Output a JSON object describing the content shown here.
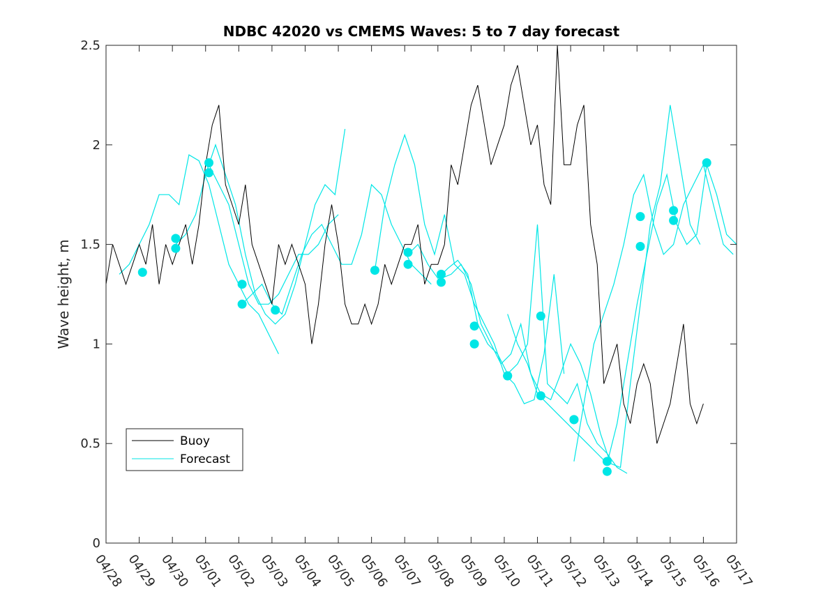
{
  "chart_data": {
    "type": "line",
    "title": "NDBC 42020 vs CMEMS Waves: 5 to 7 day forecast",
    "xlabel": "",
    "ylabel": "Wave height, m",
    "xlim_days": [
      0,
      19
    ],
    "ylim": [
      0,
      2.5
    ],
    "x_ticks": [
      "04/28",
      "04/29",
      "04/30",
      "05/01",
      "05/02",
      "05/03",
      "05/04",
      "05/05",
      "05/06",
      "05/07",
      "05/08",
      "05/09",
      "05/10",
      "05/11",
      "05/12",
      "05/13",
      "05/14",
      "05/15",
      "05/16",
      "05/17"
    ],
    "y_ticks": [
      "0",
      "0.5",
      "1",
      "1.5",
      "2",
      "2.5"
    ],
    "y_tick_values": [
      0,
      0.5,
      1,
      1.5,
      2,
      2.5
    ],
    "grid": false,
    "legend": {
      "position": "bottom-left",
      "entries": [
        {
          "label": "Buoy",
          "color": "#000000"
        },
        {
          "label": "Forecast",
          "color": "#00e6e6"
        }
      ]
    },
    "colors": {
      "buoy": "#000000",
      "forecast": "#00e6e6"
    },
    "series": [
      {
        "name": "Buoy",
        "x_day": [
          0,
          0.2,
          0.4,
          0.6,
          0.8,
          1.0,
          1.2,
          1.4,
          1.6,
          1.8,
          2.0,
          2.2,
          2.4,
          2.6,
          2.8,
          3.0,
          3.2,
          3.4,
          3.6,
          3.8,
          4.0,
          4.2,
          4.4,
          4.6,
          4.8,
          5.0,
          5.2,
          5.4,
          5.6,
          5.8,
          6.0,
          6.2,
          6.4,
          6.6,
          6.8,
          7.0,
          7.2,
          7.4,
          7.6,
          7.8,
          8.0,
          8.2,
          8.4,
          8.6,
          8.8,
          9.0,
          9.2,
          9.4,
          9.6,
          9.8,
          10.0,
          10.2,
          10.4,
          10.6,
          10.8,
          11.0,
          11.2,
          11.4,
          11.6,
          11.8,
          12.0,
          12.2,
          12.4,
          12.6,
          12.8,
          13.0,
          13.2,
          13.4,
          13.6,
          13.8,
          14.0,
          14.2,
          14.4,
          14.6,
          14.8,
          15.0,
          15.2,
          15.4,
          15.6,
          15.8,
          16.0,
          16.2,
          16.4,
          16.6,
          16.8,
          17.0,
          17.2,
          17.4,
          17.6,
          17.8,
          18.0
        ],
        "y": [
          1.3,
          1.5,
          1.4,
          1.3,
          1.4,
          1.5,
          1.4,
          1.6,
          1.3,
          1.5,
          1.4,
          1.5,
          1.6,
          1.4,
          1.6,
          1.9,
          2.1,
          2.2,
          1.8,
          1.7,
          1.6,
          1.8,
          1.5,
          1.4,
          1.3,
          1.2,
          1.5,
          1.4,
          1.5,
          1.4,
          1.3,
          1.0,
          1.2,
          1.5,
          1.7,
          1.5,
          1.2,
          1.1,
          1.1,
          1.2,
          1.1,
          1.2,
          1.4,
          1.3,
          1.4,
          1.5,
          1.5,
          1.6,
          1.3,
          1.4,
          1.4,
          1.5,
          1.9,
          1.8,
          2.0,
          2.2,
          2.3,
          2.1,
          1.9,
          2.0,
          2.1,
          2.3,
          2.4,
          2.2,
          2.0,
          2.1,
          1.8,
          1.7,
          2.5,
          1.9,
          1.9,
          2.1,
          2.2,
          1.6,
          1.4,
          0.8,
          0.9,
          1.0,
          0.7,
          0.6,
          0.8,
          0.9,
          0.8,
          0.5,
          0.6,
          0.7,
          0.9,
          1.1,
          0.7,
          0.6,
          0.7
        ]
      },
      {
        "name": "Forecast",
        "runs": [
          {
            "x_day": [
              0.4,
              0.7,
              1.0,
              1.3,
              1.6,
              1.9,
              2.2,
              2.5,
              2.8,
              3.1,
              3.4,
              3.7,
              4.0,
              4.3,
              4.6,
              4.9,
              5.2
            ],
            "y": [
              1.35,
              1.4,
              1.5,
              1.6,
              1.75,
              1.75,
              1.7,
              1.95,
              1.92,
              1.8,
              1.6,
              1.4,
              1.3,
              1.2,
              1.15,
              1.05,
              0.95
            ]
          },
          {
            "x_day": [
              2.1,
              2.4,
              2.7,
              3.0,
              3.3,
              3.6,
              3.9,
              4.2,
              4.5,
              4.8,
              5.1,
              5.4,
              5.7,
              6.0,
              6.3,
              6.6,
              6.9,
              7.2
            ],
            "y": [
              1.5,
              1.55,
              1.65,
              1.85,
              2.0,
              1.85,
              1.7,
              1.45,
              1.25,
              1.15,
              1.1,
              1.15,
              1.3,
              1.5,
              1.7,
              1.8,
              1.75,
              2.08
            ]
          },
          {
            "x_day": [
              3.1,
              3.4,
              3.7,
              4.0,
              4.3,
              4.6,
              4.9,
              5.2,
              5.5,
              5.8,
              6.1,
              6.4,
              6.7,
              7.0
            ],
            "y": [
              1.9,
              1.8,
              1.7,
              1.5,
              1.3,
              1.2,
              1.2,
              1.25,
              1.35,
              1.45,
              1.45,
              1.5,
              1.6,
              1.65
            ]
          },
          {
            "x_day": [
              4.1,
              4.4,
              4.7,
              5.0,
              5.3,
              5.6,
              5.9,
              6.2,
              6.5,
              6.8,
              7.1,
              7.4,
              7.7,
              8.0,
              8.3,
              8.6,
              8.9,
              9.2,
              9.5,
              9.8
            ],
            "y": [
              1.2,
              1.25,
              1.3,
              1.2,
              1.15,
              1.3,
              1.45,
              1.55,
              1.6,
              1.5,
              1.4,
              1.4,
              1.55,
              1.8,
              1.75,
              1.6,
              1.5,
              1.4,
              1.35,
              1.3
            ]
          },
          {
            "x_day": [
              8.1,
              8.4,
              8.7,
              9.0,
              9.3,
              9.6,
              9.9,
              10.2,
              10.5,
              10.8,
              11.1,
              11.4,
              11.7,
              12.0,
              12.3,
              12.6,
              12.9,
              13.2,
              13.5,
              13.8
            ],
            "y": [
              1.37,
              1.7,
              1.9,
              2.05,
              1.9,
              1.6,
              1.45,
              1.65,
              1.4,
              1.35,
              1.2,
              1.1,
              1.0,
              0.85,
              0.8,
              0.7,
              0.72,
              0.95,
              1.35,
              0.85
            ]
          },
          {
            "x_day": [
              9.1,
              9.4,
              9.7,
              10.0,
              10.3,
              10.6,
              10.9,
              11.2,
              11.5,
              11.8,
              12.1,
              12.4,
              12.7,
              13.0,
              13.3,
              13.6,
              13.9,
              14.2,
              14.5,
              14.8,
              15.1,
              15.4,
              15.7
            ],
            "y": [
              1.45,
              1.5,
              1.4,
              1.33,
              1.38,
              1.42,
              1.35,
              1.1,
              1.0,
              0.95,
              0.85,
              0.9,
              1.0,
              1.6,
              0.8,
              0.75,
              0.7,
              0.8,
              0.6,
              0.5,
              0.45,
              0.38,
              0.35
            ]
          },
          {
            "x_day": [
              10.1,
              10.4,
              10.7,
              11.0,
              11.3,
              11.6,
              11.9,
              12.2,
              12.5,
              12.8,
              13.1,
              13.4,
              13.7,
              14.0,
              14.3,
              14.6,
              14.9,
              15.2,
              15.5,
              15.8,
              16.1,
              16.4,
              16.7,
              17.0,
              17.3,
              17.6,
              17.9
            ],
            "y": [
              1.33,
              1.35,
              1.4,
              1.3,
              1.1,
              1.0,
              0.9,
              0.95,
              1.1,
              0.85,
              0.75,
              0.72,
              0.85,
              1.0,
              0.9,
              0.75,
              0.55,
              0.4,
              0.38,
              0.8,
              1.2,
              1.6,
              1.8,
              2.2,
              1.9,
              1.6,
              1.5
            ]
          },
          {
            "x_day": [
              12.1,
              12.4,
              12.7,
              13.0,
              13.3,
              13.6,
              13.9,
              14.2,
              14.5,
              14.8,
              15.1,
              15.4,
              15.7,
              16.0,
              16.3,
              16.6,
              16.9,
              17.2,
              17.5,
              17.8,
              18.1,
              18.4,
              18.7,
              19.0
            ],
            "y": [
              1.15,
              1.0,
              0.9,
              0.75,
              0.7,
              0.65,
              0.6,
              0.55,
              0.5,
              0.45,
              0.4,
              0.6,
              0.9,
              1.2,
              1.45,
              1.7,
              1.85,
              1.6,
              1.5,
              1.55,
              1.9,
              1.75,
              1.55,
              1.5
            ]
          },
          {
            "x_day": [
              14.1,
              14.4,
              14.7,
              15.0,
              15.3,
              15.6,
              15.9,
              16.2,
              16.5,
              16.8,
              17.1,
              17.4,
              17.7,
              18.0,
              18.3,
              18.6,
              18.9
            ],
            "y": [
              0.41,
              0.7,
              1.0,
              1.15,
              1.3,
              1.5,
              1.75,
              1.85,
              1.6,
              1.45,
              1.5,
              1.7,
              1.8,
              1.9,
              1.7,
              1.5,
              1.45
            ]
          }
        ],
        "markers": {
          "x_day": [
            1.1,
            2.1,
            2.1,
            3.1,
            3.1,
            4.1,
            4.1,
            5.1,
            8.1,
            9.1,
            9.1,
            10.1,
            10.1,
            11.1,
            11.1,
            12.1,
            12.1,
            13.1,
            13.1,
            14.1,
            14.1,
            15.1,
            15.1,
            16.1,
            16.1,
            17.1,
            17.1,
            18.1
          ],
          "y": [
            1.36,
            1.53,
            1.48,
            1.91,
            1.86,
            1.3,
            1.2,
            1.17,
            1.37,
            1.46,
            1.4,
            1.35,
            1.31,
            1.09,
            1.0,
            0.84,
            0.84,
            0.74,
            1.14,
            0.62,
            0.62,
            0.41,
            0.36,
            1.64,
            1.49,
            1.67,
            1.62,
            1.91
          ]
        }
      }
    ]
  }
}
